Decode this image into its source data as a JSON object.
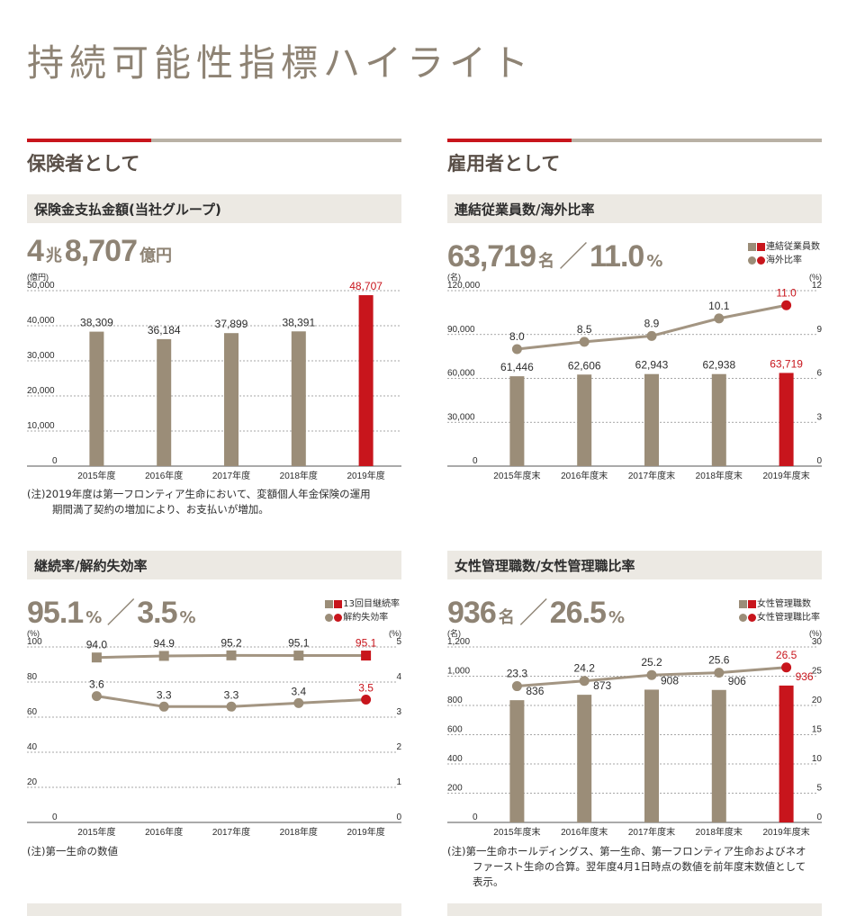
{
  "page_title": "持続可能性指標ハイライト",
  "sections": {
    "left": "保険者として",
    "right": "雇用者として"
  },
  "colors": {
    "bar": "#9b8d78",
    "highlight": "#c8151c",
    "line": "#a39582",
    "grid": "#8a8a8a"
  },
  "panels": {
    "p1": {
      "title": "保険金支払金額(当社グループ)",
      "kpi": {
        "a_num": "4",
        "a_unit": "兆",
        "b_num": "8,707",
        "b_unit": "億円"
      },
      "note_lines": [
        "(注)2019年度は第一フロンティア生命において、変額個人年金保険の運用",
        "期間満了契約の増加により、お支払いが増加。"
      ]
    },
    "p2": {
      "title": "連結従業員数/海外比率",
      "kpi": {
        "a_num": "63,719",
        "a_unit": "名",
        "b_num": "11.0",
        "b_unit": "%"
      },
      "legend": [
        "連結従業員数",
        "海外比率"
      ]
    },
    "p3": {
      "title": "継続率/解約失効率",
      "kpi": {
        "a_num": "95.1",
        "a_unit": "%",
        "b_num": "3.5",
        "b_unit": "%"
      },
      "legend": [
        "13回目継続率",
        "解約失効率"
      ],
      "note_lines": [
        "(注)第一生命の数値"
      ]
    },
    "p4": {
      "title": "女性管理職数/女性管理職比率",
      "kpi": {
        "a_num": "936",
        "a_unit": "名",
        "b_num": "26.5",
        "b_unit": "%"
      },
      "legend": [
        "女性管理職数",
        "女性管理職比率"
      ],
      "note_lines": [
        "(注)第一生命ホールディングス、第一生命、第一フロンティア生命およびネオ",
        "ファースト生命の合算。翌年度4月1日時点の数値を前年度末数値として",
        "表示。"
      ]
    }
  },
  "chart_data": [
    {
      "type": "bar",
      "title": "保険金支払金額(当社グループ)",
      "categories": [
        "2015年度",
        "2016年度",
        "2017年度",
        "2018年度",
        "2019年度"
      ],
      "ylabel": "(億円)",
      "ylim": [
        0,
        50000
      ],
      "yticks": [
        "0",
        "10,000",
        "20,000",
        "30,000",
        "40,000",
        "50,000"
      ],
      "values": [
        38309,
        36184,
        37899,
        38391,
        48707
      ],
      "labels": [
        "38,309",
        "36,184",
        "37,899",
        "38,391",
        "48,707"
      ],
      "highlight_index": 4
    },
    {
      "type": "bar+line",
      "title": "連結従業員数/海外比率",
      "categories": [
        "2015年度末",
        "2016年度末",
        "2017年度末",
        "2018年度末",
        "2019年度末"
      ],
      "ylabel_left": "(名)",
      "ylabel_right": "(%)",
      "ylim_left": [
        0,
        120000
      ],
      "ylim_right": [
        0,
        12
      ],
      "yticks_left": [
        "0",
        "30,000",
        "60,000",
        "90,000",
        "120,000"
      ],
      "yticks_right": [
        "0",
        "3",
        "6",
        "9",
        "12"
      ],
      "series": [
        {
          "name": "連結従業員数",
          "kind": "bar",
          "values": [
            61446,
            62606,
            62943,
            62938,
            63719
          ],
          "labels": [
            "61,446",
            "62,606",
            "62,943",
            "62,938",
            "63,719"
          ]
        },
        {
          "name": "海外比率",
          "kind": "line",
          "values": [
            8.0,
            8.5,
            8.9,
            10.1,
            11.0
          ],
          "labels": [
            "8.0",
            "8.5",
            "8.9",
            "10.1",
            "11.0"
          ]
        }
      ],
      "highlight_index": 4
    },
    {
      "type": "line",
      "title": "継続率/解約失効率",
      "categories": [
        "2015年度",
        "2016年度",
        "2017年度",
        "2018年度",
        "2019年度"
      ],
      "ylabel_left": "(%)",
      "ylabel_right": "(%)",
      "ylim_left": [
        0,
        100
      ],
      "ylim_right": [
        0,
        5
      ],
      "yticks_left": [
        "0",
        "20",
        "40",
        "60",
        "80",
        "100"
      ],
      "yticks_right": [
        "0",
        "1",
        "2",
        "3",
        "4",
        "5"
      ],
      "series": [
        {
          "name": "13回目継続率",
          "axis": "left",
          "marker": "square",
          "values": [
            94.0,
            94.9,
            95.2,
            95.1,
            95.1
          ],
          "labels": [
            "94.0",
            "94.9",
            "95.2",
            "95.1",
            "95.1"
          ]
        },
        {
          "name": "解約失効率",
          "axis": "right",
          "marker": "circle",
          "values": [
            3.6,
            3.3,
            3.3,
            3.4,
            3.5
          ],
          "labels": [
            "3.6",
            "3.3",
            "3.3",
            "3.4",
            "3.5"
          ]
        }
      ],
      "highlight_index": 4
    },
    {
      "type": "bar+line",
      "title": "女性管理職数/女性管理職比率",
      "categories": [
        "2015年度末",
        "2016年度末",
        "2017年度末",
        "2018年度末",
        "2019年度末"
      ],
      "ylabel_left": "(名)",
      "ylabel_right": "(%)",
      "ylim_left": [
        0,
        1200
      ],
      "ylim_right": [
        0,
        30
      ],
      "yticks_left": [
        "0",
        "200",
        "400",
        "600",
        "800",
        "1,000",
        "1,200"
      ],
      "yticks_right": [
        "0",
        "5",
        "10",
        "15",
        "20",
        "25",
        "30"
      ],
      "series": [
        {
          "name": "女性管理職数",
          "kind": "bar",
          "values": [
            836,
            873,
            908,
            906,
            936
          ],
          "labels": [
            "836",
            "873",
            "908",
            "906",
            "936"
          ]
        },
        {
          "name": "女性管理職比率",
          "kind": "line",
          "values": [
            23.3,
            24.2,
            25.2,
            25.6,
            26.5
          ],
          "labels": [
            "23.3",
            "24.2",
            "25.2",
            "25.6",
            "26.5"
          ]
        }
      ],
      "highlight_index": 4
    }
  ]
}
